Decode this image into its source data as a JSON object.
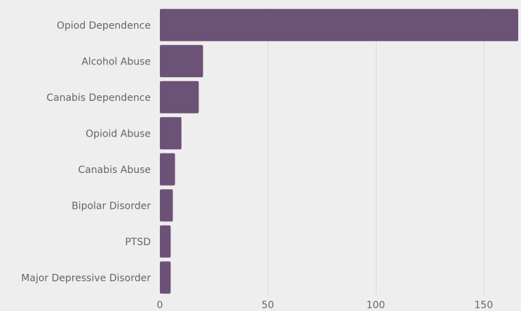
{
  "chart_data": {
    "type": "bar",
    "orientation": "horizontal",
    "categories": [
      "Opiod Dependence",
      "Alcohol Abuse",
      "Canabis Dependence",
      "Opioid Abuse",
      "Canabis Abuse",
      "Bipolar Disorder",
      "PTSD",
      "Major Depressive Disorder"
    ],
    "values": [
      166,
      20,
      18,
      10,
      7,
      6,
      5,
      5
    ],
    "xlim": [
      0,
      166
    ],
    "xticks": [
      0,
      50,
      100,
      150
    ],
    "title": "",
    "xlabel": "",
    "ylabel": "",
    "grid": "vertical",
    "legend": "none",
    "bar_color": "#6c5277",
    "background_color": "#eeeeee"
  }
}
